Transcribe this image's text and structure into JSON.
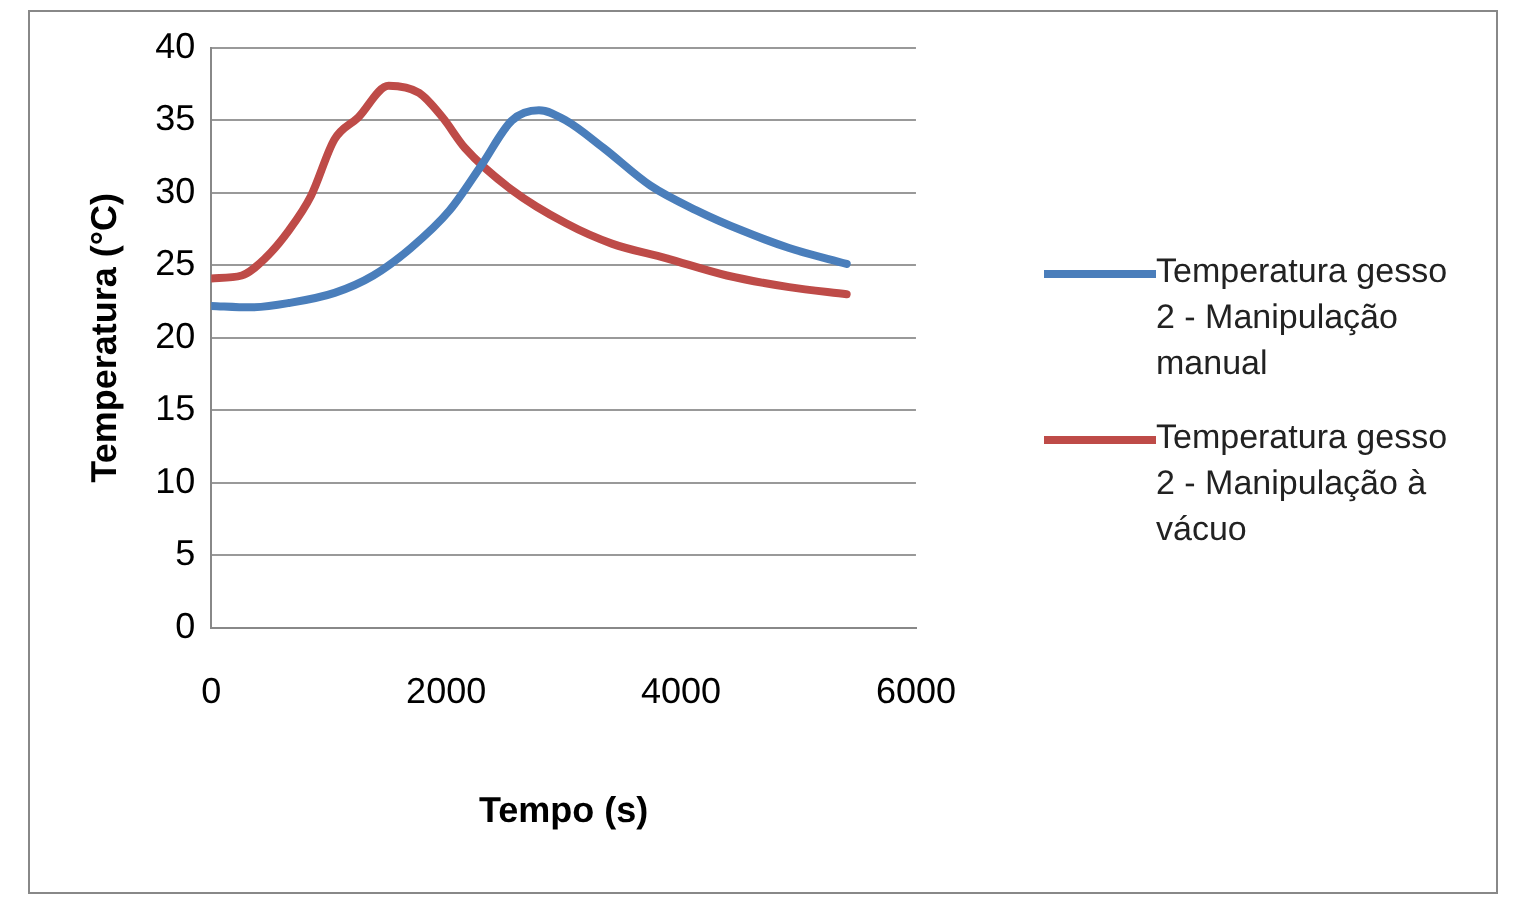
{
  "chart_data": {
    "type": "line",
    "xlabel": "Tempo (s)",
    "ylabel": "Temperatura (°C)",
    "xlim": [
      0,
      6000
    ],
    "xticks": [
      0,
      2000,
      4000,
      6000
    ],
    "ylim": [
      0,
      40
    ],
    "yticks": [
      0,
      5,
      10,
      15,
      20,
      25,
      30,
      35,
      40
    ],
    "grid": "y",
    "legend": "right",
    "marker": "none",
    "line_style": "solid",
    "series": [
      {
        "name": "Temperatura gesso 2 - Manipulação manual",
        "color": "#4a7ebb",
        "x": [
          0,
          330,
          660,
          1050,
          1380,
          1700,
          2030,
          2300,
          2560,
          2790,
          3020,
          3340,
          3740,
          4130,
          4520,
          4920,
          5410
        ],
        "values": [
          22.2,
          22.1,
          22.4,
          23.1,
          24.3,
          26.2,
          28.8,
          31.9,
          35.0,
          35.7,
          35.0,
          33.1,
          30.5,
          28.8,
          27.4,
          26.2,
          25.1
        ]
      },
      {
        "name": "Temperatura gesso 2 - Manipulação à vácuo",
        "color": "#be4b48",
        "x": [
          0,
          260,
          460,
          660,
          850,
          1050,
          1250,
          1510,
          1770,
          1970,
          2160,
          2560,
          3020,
          3410,
          3870,
          4390,
          4920,
          5410
        ],
        "values": [
          24.1,
          24.3,
          25.5,
          27.4,
          29.8,
          33.7,
          35.2,
          37.4,
          36.9,
          35.2,
          33.1,
          30.2,
          27.9,
          26.5,
          25.5,
          24.3,
          23.5,
          23.0
        ]
      }
    ]
  }
}
